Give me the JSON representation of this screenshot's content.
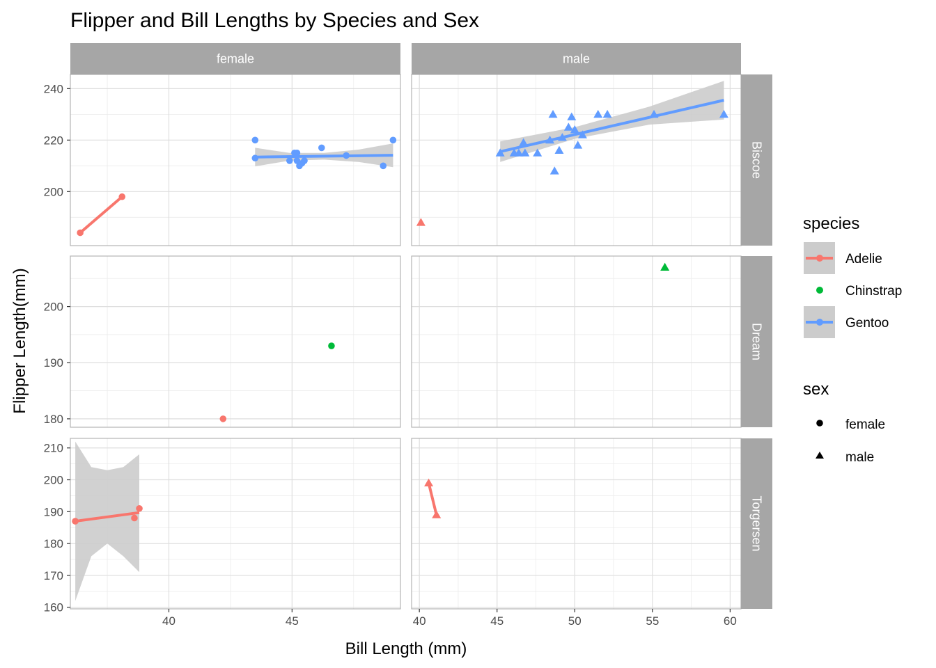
{
  "chart_data": {
    "type": "scatter",
    "title": "Flipper and Bill Lengths by Species and Sex",
    "xlabel": "Bill Length (mm)",
    "ylabel": "Flipper Length(mm)",
    "facet_cols": [
      "female",
      "male"
    ],
    "facet_rows": [
      "Biscoe",
      "Dream",
      "Torgersen"
    ],
    "x_scales": [
      {
        "facet": "female",
        "lim": [
          36,
          49.4
        ],
        "ticks": [
          40,
          45
        ],
        "tick_labels": [
          "40",
          "45"
        ]
      },
      {
        "facet": "male",
        "lim": [
          39.5,
          60.7
        ],
        "ticks": [
          40,
          45,
          50,
          55,
          60
        ],
        "tick_labels": [
          "40",
          "45",
          "50",
          "55",
          "60"
        ]
      }
    ],
    "y_scales": [
      {
        "facet": "Biscoe",
        "lim": [
          179,
          245.5
        ],
        "ticks": [
          200,
          220,
          240
        ],
        "tick_labels": [
          "200",
          "220",
          "240"
        ]
      },
      {
        "facet": "Dream",
        "lim": [
          178.5,
          209
        ],
        "ticks": [
          180,
          190,
          200
        ],
        "tick_labels": [
          "180",
          "190",
          "200"
        ]
      },
      {
        "facet": "Torgersen",
        "lim": [
          159.5,
          213
        ],
        "ticks": [
          160,
          170,
          180,
          190,
          200,
          210
        ],
        "tick_labels": [
          "160",
          "170",
          "180",
          "190",
          "200",
          "210"
        ]
      }
    ],
    "legend": {
      "position": "right",
      "species_title": "species",
      "species": [
        {
          "name": "Adelie",
          "color": "#F8766D"
        },
        {
          "name": "Chinstrap",
          "color": "#00BA38"
        },
        {
          "name": "Gentoo",
          "color": "#619CFF"
        }
      ],
      "sex_title": "sex",
      "sex": [
        {
          "name": "female",
          "shape": "circle"
        },
        {
          "name": "male",
          "shape": "triangle"
        }
      ]
    },
    "colors": {
      "Adelie": "#F8766D",
      "Chinstrap": "#00BA38",
      "Gentoo": "#619CFF",
      "strip": "#a6a6a6",
      "ribbon": "#cccccc"
    },
    "panels": [
      {
        "col": 0,
        "row": 0,
        "points": [
          {
            "species": "Adelie",
            "x": 36.4,
            "y": 184
          },
          {
            "species": "Adelie",
            "x": 38.1,
            "y": 198
          },
          {
            "species": "Gentoo",
            "x": 43.5,
            "y": 220
          },
          {
            "species": "Gentoo",
            "x": 43.5,
            "y": 213
          },
          {
            "species": "Gentoo",
            "x": 44.9,
            "y": 212
          },
          {
            "species": "Gentoo",
            "x": 45.1,
            "y": 215
          },
          {
            "species": "Gentoo",
            "x": 45.2,
            "y": 215
          },
          {
            "species": "Gentoo",
            "x": 45.2,
            "y": 212
          },
          {
            "species": "Gentoo",
            "x": 45.3,
            "y": 210
          },
          {
            "species": "Gentoo",
            "x": 45.4,
            "y": 211
          },
          {
            "species": "Gentoo",
            "x": 45.5,
            "y": 212
          },
          {
            "species": "Gentoo",
            "x": 46.2,
            "y": 217
          },
          {
            "species": "Gentoo",
            "x": 47.2,
            "y": 214
          },
          {
            "species": "Gentoo",
            "x": 48.7,
            "y": 210
          },
          {
            "species": "Gentoo",
            "x": 49.1,
            "y": 220
          }
        ],
        "lines": [
          {
            "species": "Adelie",
            "x": [
              36.4,
              38.1
            ],
            "y": [
              184,
              198
            ]
          },
          {
            "species": "Gentoo",
            "x": [
              43.5,
              49.1
            ],
            "y": [
              213.4,
              214.1
            ],
            "band_x": [
              43.5,
              44.9,
              46.3,
              47.7,
              49.1
            ],
            "band_lo": [
              209.8,
              212.0,
              212.4,
              211.5,
              209.5
            ],
            "band_hi": [
              217.0,
              215.0,
              215.0,
              216.3,
              218.7
            ]
          }
        ]
      },
      {
        "col": 1,
        "row": 0,
        "points": [
          {
            "species": "Adelie",
            "x": 40.1,
            "y": 188
          },
          {
            "species": "Gentoo",
            "x": 45.2,
            "y": 215
          },
          {
            "species": "Gentoo",
            "x": 46.1,
            "y": 215
          },
          {
            "species": "Gentoo",
            "x": 46.4,
            "y": 215
          },
          {
            "species": "Gentoo",
            "x": 46.7,
            "y": 219
          },
          {
            "species": "Gentoo",
            "x": 46.8,
            "y": 215
          },
          {
            "species": "Gentoo",
            "x": 47.6,
            "y": 215
          },
          {
            "species": "Gentoo",
            "x": 48.4,
            "y": 220
          },
          {
            "species": "Gentoo",
            "x": 48.6,
            "y": 230
          },
          {
            "species": "Gentoo",
            "x": 48.7,
            "y": 208
          },
          {
            "species": "Gentoo",
            "x": 49.0,
            "y": 216
          },
          {
            "species": "Gentoo",
            "x": 49.2,
            "y": 221
          },
          {
            "species": "Gentoo",
            "x": 49.6,
            "y": 225
          },
          {
            "species": "Gentoo",
            "x": 49.8,
            "y": 229
          },
          {
            "species": "Gentoo",
            "x": 50.0,
            "y": 224
          },
          {
            "species": "Gentoo",
            "x": 50.2,
            "y": 218
          },
          {
            "species": "Gentoo",
            "x": 50.5,
            "y": 222
          },
          {
            "species": "Gentoo",
            "x": 51.5,
            "y": 230
          },
          {
            "species": "Gentoo",
            "x": 52.1,
            "y": 230
          },
          {
            "species": "Gentoo",
            "x": 55.1,
            "y": 230
          },
          {
            "species": "Gentoo",
            "x": 59.6,
            "y": 230
          }
        ],
        "lines": [
          {
            "species": "Gentoo",
            "x": [
              45.2,
              59.6
            ],
            "y": [
              215.5,
              235.5
            ],
            "band_x": [
              45.2,
              50.0,
              54.8,
              59.6
            ],
            "band_lo": [
              211.5,
              220.5,
              226.0,
              228.0
            ],
            "band_hi": [
              219.5,
              225.0,
              233.0,
              243.0
            ]
          }
        ]
      },
      {
        "col": 0,
        "row": 1,
        "points": [
          {
            "species": "Adelie",
            "x": 42.2,
            "y": 180
          },
          {
            "species": "Chinstrap",
            "x": 46.6,
            "y": 193
          }
        ],
        "lines": []
      },
      {
        "col": 1,
        "row": 1,
        "points": [
          {
            "species": "Chinstrap",
            "x": 55.8,
            "y": 207
          }
        ],
        "lines": []
      },
      {
        "col": 0,
        "row": 2,
        "points": [
          {
            "species": "Adelie",
            "x": 36.2,
            "y": 187
          },
          {
            "species": "Adelie",
            "x": 38.6,
            "y": 188
          },
          {
            "species": "Adelie",
            "x": 38.8,
            "y": 191
          }
        ],
        "lines": [
          {
            "species": "Adelie",
            "x": [
              36.2,
              38.8
            ],
            "y": [
              187,
              189.7
            ],
            "band_x": [
              36.2,
              36.85,
              37.5,
              38.15,
              38.8
            ],
            "band_lo": [
              162,
              176,
              180,
              176,
              171
            ],
            "band_hi": [
              212,
              204,
              203,
              204,
              208
            ]
          }
        ]
      },
      {
        "col": 1,
        "row": 2,
        "points": [
          {
            "species": "Adelie",
            "x": 40.6,
            "y": 199
          },
          {
            "species": "Adelie",
            "x": 41.1,
            "y": 189
          }
        ],
        "lines": [
          {
            "species": "Adelie",
            "x": [
              40.6,
              41.1
            ],
            "y": [
              199,
              189
            ]
          }
        ]
      }
    ]
  }
}
